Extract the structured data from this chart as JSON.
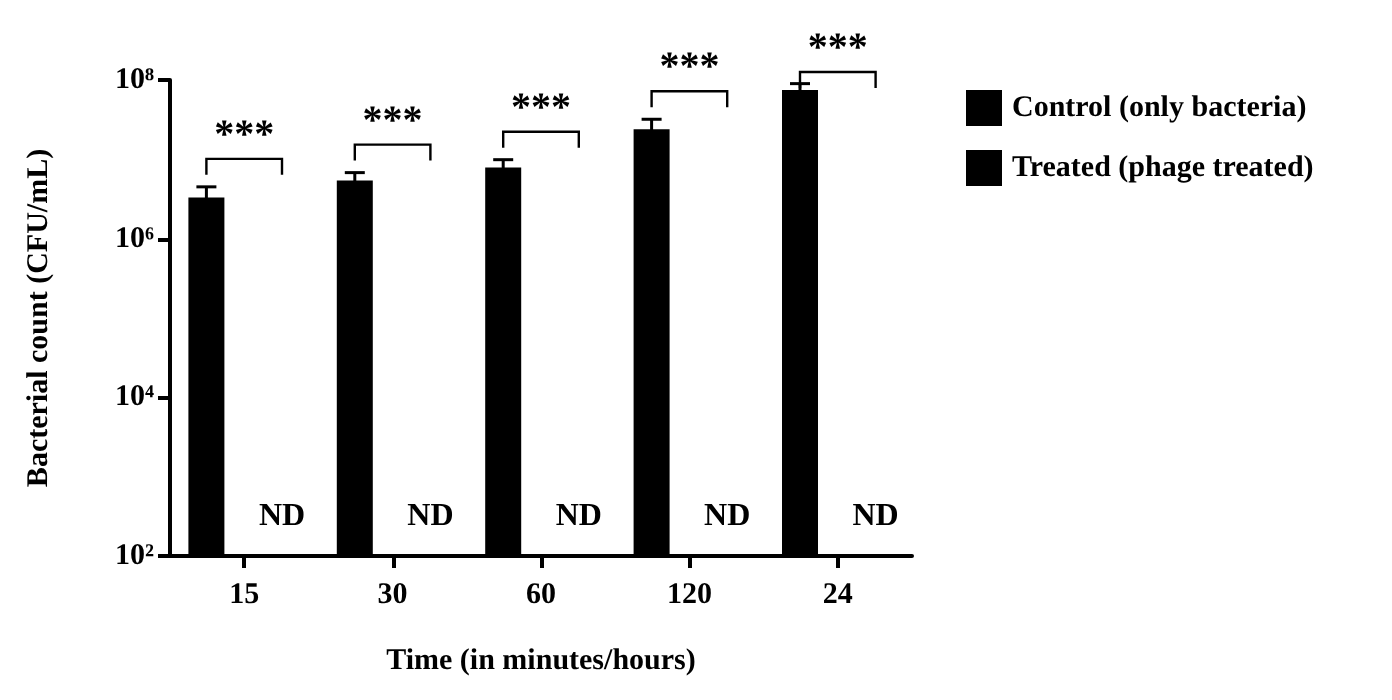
{
  "chart_data": {
    "type": "bar",
    "xlabel": "Time (in minutes/hours)",
    "ylabel": "Bacterial count (CFU/mL)",
    "categories": [
      "15",
      "30",
      "60",
      "120",
      "24"
    ],
    "series": [
      {
        "name": "Control (only bacteria)",
        "color": "#000000",
        "values": [
          3300000,
          5400000,
          7900000,
          24000000,
          75000000
        ],
        "errors": [
          1200000,
          1400000,
          2000000,
          8000000,
          15000000
        ]
      },
      {
        "name": "Treated (phage treated)",
        "color": "#000000",
        "values": [
          null,
          null,
          null,
          null,
          null
        ]
      }
    ],
    "log": true,
    "ylim": [
      100,
      100000000
    ],
    "yticks": [
      {
        "value": 100,
        "label": "10²"
      },
      {
        "value": 10000,
        "label": "10⁴"
      },
      {
        "value": 1000000,
        "label": "10⁶"
      },
      {
        "value": 100000000,
        "label": "10⁸"
      }
    ],
    "legend": "right",
    "grid": false,
    "annotations": [
      "***",
      "***",
      "***",
      "***",
      "***",
      "ND",
      "ND",
      "ND",
      "ND",
      "ND"
    ]
  }
}
